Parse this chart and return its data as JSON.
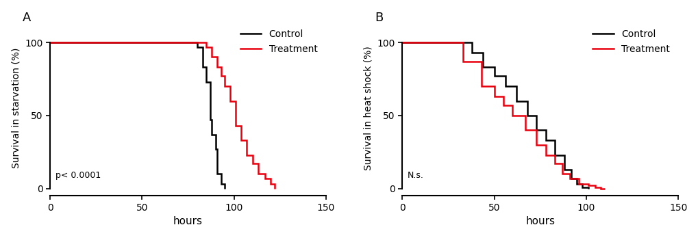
{
  "panel_A": {
    "title_label": "A",
    "ylabel": "Survival in starvation (%)",
    "xlabel": "hours",
    "annotation": "p< 0.0001",
    "xlim": [
      0,
      150
    ],
    "ylim": [
      -5,
      115
    ],
    "xticks": [
      0,
      50,
      100,
      150
    ],
    "yticks": [
      0,
      50,
      100
    ],
    "control_x": [
      0,
      80,
      80,
      83,
      83,
      85,
      85,
      87,
      87,
      88,
      88,
      90,
      90,
      91,
      91,
      93,
      93,
      95,
      95
    ],
    "control_y": [
      100,
      100,
      97,
      97,
      83,
      83,
      73,
      73,
      47,
      47,
      37,
      37,
      27,
      27,
      10,
      10,
      3,
      3,
      0
    ],
    "treatment_x": [
      0,
      85,
      85,
      88,
      88,
      91,
      91,
      93,
      93,
      95,
      95,
      98,
      98,
      101,
      101,
      104,
      104,
      107,
      107,
      110,
      110,
      113,
      113,
      117,
      117,
      120,
      120,
      122,
      122
    ],
    "treatment_y": [
      100,
      100,
      97,
      97,
      90,
      90,
      83,
      83,
      77,
      77,
      70,
      70,
      60,
      60,
      43,
      43,
      33,
      33,
      23,
      23,
      17,
      17,
      10,
      10,
      7,
      7,
      3,
      3,
      0
    ]
  },
  "panel_B": {
    "title_label": "B",
    "ylabel": "Survival in heat shock (%)",
    "xlabel": "hours",
    "annotation": "N.s.",
    "xlim": [
      0,
      150
    ],
    "ylim": [
      -5,
      115
    ],
    "xticks": [
      0,
      50,
      100,
      150
    ],
    "yticks": [
      0,
      50,
      100
    ],
    "control_x": [
      0,
      38,
      38,
      44,
      44,
      50,
      50,
      56,
      56,
      62,
      62,
      68,
      68,
      73,
      73,
      78,
      78,
      83,
      83,
      88,
      88,
      92,
      92,
      95,
      95,
      98,
      98,
      101,
      101
    ],
    "control_y": [
      100,
      100,
      93,
      93,
      83,
      83,
      77,
      77,
      70,
      70,
      60,
      60,
      50,
      50,
      40,
      40,
      33,
      33,
      23,
      23,
      13,
      13,
      7,
      7,
      3,
      3,
      1,
      1,
      0
    ],
    "treatment_x": [
      0,
      33,
      33,
      43,
      43,
      50,
      50,
      55,
      55,
      60,
      60,
      67,
      67,
      73,
      73,
      78,
      78,
      83,
      83,
      87,
      87,
      91,
      91,
      96,
      96,
      101,
      101,
      105,
      105,
      108,
      108,
      110,
      110
    ],
    "treatment_y": [
      100,
      100,
      87,
      87,
      70,
      70,
      63,
      63,
      57,
      57,
      50,
      50,
      40,
      40,
      30,
      30,
      23,
      23,
      17,
      17,
      10,
      10,
      7,
      7,
      3,
      3,
      2,
      2,
      1,
      1,
      0,
      0,
      0
    ]
  },
  "control_color": "#000000",
  "treatment_color": "#e8000d",
  "line_width": 1.8,
  "legend_labels": [
    "Control",
    "Treatment"
  ],
  "bg_color": "#ffffff"
}
